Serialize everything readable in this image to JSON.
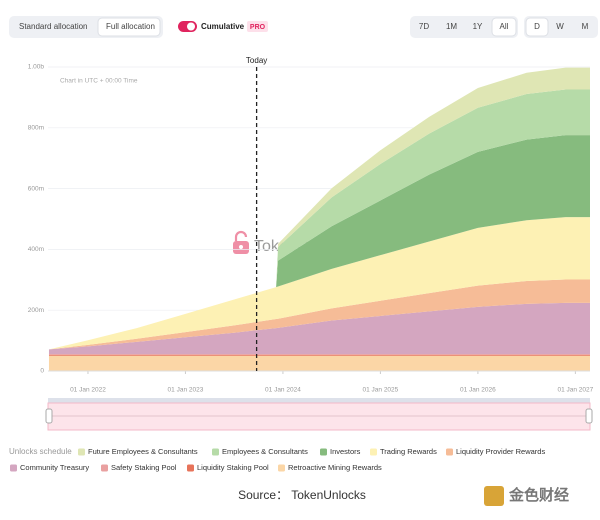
{
  "controls": {
    "allocation": [
      "Standard allocation",
      "Full allocation"
    ],
    "toggle": "Cumulative",
    "badge": "PRO",
    "ranges": [
      "7D",
      "1M",
      "1Y",
      "All"
    ],
    "intervals": [
      "D",
      "W",
      "M"
    ]
  },
  "chart_data": {
    "type": "stacked-area",
    "note": "Chart in UTC + 00:00 Time",
    "watermark": "TokenUnlocks.",
    "annotation": {
      "text": "Today",
      "x": 2023.73
    },
    "legend_title": "Unlocks schedule",
    "x": [
      2021.6,
      2022,
      2022.5,
      2023,
      2023.5,
      2023.93,
      2023.95,
      2024.5,
      2025,
      2025.5,
      2026,
      2026.5,
      2026.9,
      2027.15
    ],
    "xlim": [
      2021.59,
      2027.15
    ],
    "xticks": [
      {
        "value": 2022,
        "label": "01 Jan 2022"
      },
      {
        "value": 2023,
        "label": "01 Jan 2023"
      },
      {
        "value": 2024,
        "label": "01 Jan 2024"
      },
      {
        "value": 2025,
        "label": "01 Jan 2025"
      },
      {
        "value": 2026,
        "label": "01 Jan 2026"
      },
      {
        "value": 2027,
        "label": "01 Jan 2027"
      }
    ],
    "ylim": [
      0,
      1000
    ],
    "yticks": [
      0,
      {
        "value": 200,
        "label": "200m"
      },
      {
        "value": 400,
        "label": "400m"
      },
      {
        "value": 600,
        "label": "600m"
      },
      {
        "value": 800,
        "label": "800m"
      },
      {
        "value": 1000,
        "label": "1.00b"
      }
    ],
    "grid": true,
    "series": [
      {
        "name": "Future Employees & Consultants",
        "color": "#dfe6b4",
        "values": [
          0,
          0,
          0,
          0,
          0,
          0,
          10,
          30,
          45,
          55,
          65,
          70,
          72,
          72
        ]
      },
      {
        "name": "Employees & Consultants",
        "color": "#b6dba8",
        "values": [
          0,
          0,
          0,
          0,
          0,
          0,
          45,
          95,
          120,
          135,
          145,
          150,
          150,
          150
        ]
      },
      {
        "name": "Investors",
        "color": "#86bb7e",
        "values": [
          0,
          0,
          0,
          0,
          0,
          0,
          85,
          140,
          180,
          220,
          250,
          265,
          270,
          270
        ]
      },
      {
        "name": "Trading Rewards",
        "color": "#fdf1b4",
        "values": [
          0,
          15,
          35,
          60,
          85,
          105,
          106,
          130,
          150,
          170,
          190,
          200,
          205,
          205
        ]
      },
      {
        "name": "Liquidity Provider Rewards",
        "color": "#f6bc97",
        "values": [
          0,
          5,
          10,
          17,
          24,
          30,
          30,
          40,
          50,
          60,
          70,
          75,
          77,
          77
        ]
      },
      {
        "name": "Community Treasury",
        "color": "#d4a6c0",
        "values": [
          15,
          25,
          40,
          55,
          70,
          85,
          86,
          110,
          125,
          140,
          155,
          165,
          168,
          168
        ]
      },
      {
        "name": "Safety Staking Pool",
        "color": "#e9a0a0",
        "values": [
          3,
          3,
          3,
          3,
          3,
          3,
          3,
          3,
          3,
          3,
          3,
          3,
          3,
          3
        ]
      },
      {
        "name": "Liquidity Staking Pool",
        "color": "#e7735a",
        "values": [
          3,
          3,
          3,
          3,
          3,
          3,
          3,
          3,
          3,
          3,
          3,
          3,
          3,
          3
        ]
      },
      {
        "name": "Retroactive Mining Rewards",
        "color": "#fbd6a6",
        "values": [
          50,
          50,
          50,
          50,
          50,
          50,
          50,
          50,
          50,
          50,
          50,
          50,
          50,
          50
        ]
      }
    ]
  },
  "footer": {
    "source": "Source：  TokenUnlocks",
    "logo": "金色财经"
  }
}
